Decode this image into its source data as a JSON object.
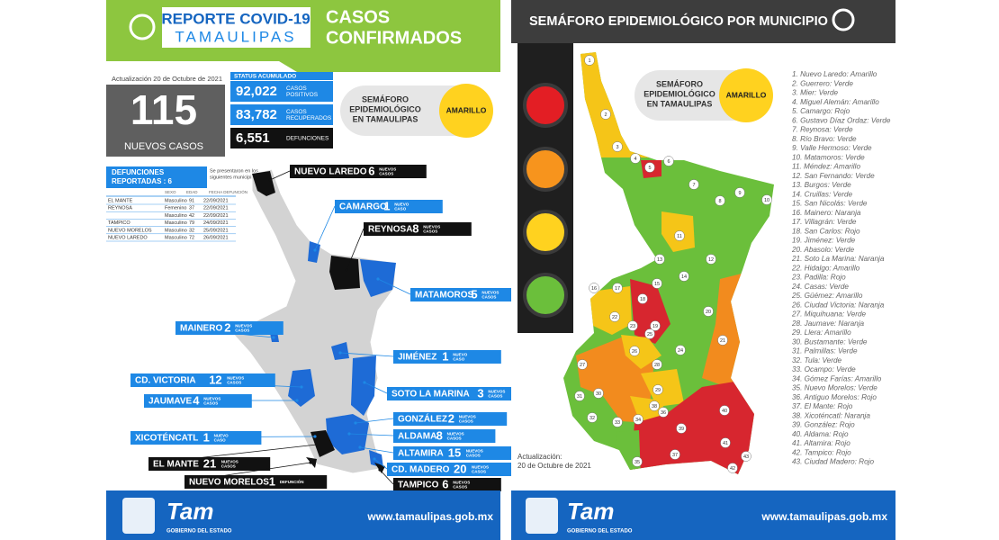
{
  "left": {
    "header": {
      "title": "REPORTE COVID-19",
      "subtitle": "TAMAULIPAS",
      "heading_lines": [
        "CASOS",
        "CONFIRMADOS"
      ]
    },
    "update": "Actualización 20 de Octubre de 2021",
    "new_cases": {
      "value": "115",
      "label": "NUEVOS CASOS"
    },
    "status": {
      "title": "STATUS ACUMULADO",
      "items": [
        {
          "value": "92,022",
          "label_lines": [
            "CASOS",
            "POSITIVOS"
          ]
        },
        {
          "value": "83,782",
          "label_lines": [
            "CASOS",
            "RECUPERADOS"
          ]
        },
        {
          "value": "6,551",
          "label_lines": [
            "DEFUNCIONES"
          ]
        }
      ]
    },
    "semaforo": {
      "lines": [
        "SEMÁFORO",
        "EPIDEMIOLÓGICO",
        "EN TAMAULIPAS"
      ],
      "level": "AMARILLO"
    },
    "deaths": {
      "title_lines": [
        "DEFUNCIONES",
        "REPORTADAS : 6"
      ],
      "note_lines": [
        "Se presentaron en los",
        "siguientes municipios:"
      ],
      "headers": [
        "SEXO",
        "EDAD",
        "FECHA DEFUNCIÓN"
      ],
      "rows": [
        {
          "municipio": "EL MANTE",
          "sexo": "Masculino",
          "edad": "91",
          "fecha": "22/09/2021"
        },
        {
          "municipio": "REYNOSA",
          "sexo": "Femenino",
          "edad": "37",
          "fecha": "22/09/2021"
        },
        {
          "sexo": "Masculino",
          "edad": "42",
          "fecha": "22/09/2021"
        },
        {
          "municipio": "TAMPICO",
          "sexo": "Masculino",
          "edad": "79",
          "fecha": "24/09/2021"
        },
        {
          "municipio": "NUEVO MORELOS",
          "sexo": "Masculino",
          "edad": "32",
          "fecha": "25/09/2021"
        },
        {
          "municipio": "NUEVO LAREDO",
          "sexo": "Masculino",
          "edad": "72",
          "fecha": "26/09/2021"
        }
      ]
    },
    "callouts": [
      {
        "name": "NUEVO LAREDO",
        "count": "6",
        "unit_lines": [
          "NUEVOS",
          "CASOS"
        ],
        "style": "black"
      },
      {
        "name": "CAMARGO",
        "count": "1",
        "unit_lines": [
          "NUEVO",
          "CASO"
        ],
        "style": "blue"
      },
      {
        "name": "REYNOSA",
        "count": "8",
        "unit_lines": [
          "NUEVOS",
          "CASOS"
        ],
        "style": "black"
      },
      {
        "name": "MATAMOROS",
        "count": "5",
        "unit_lines": [
          "NUEVOS",
          "CASOS"
        ],
        "style": "blue"
      },
      {
        "name": "MAINERO",
        "count": "2",
        "unit_lines": [
          "NUEVOS",
          "CASOS"
        ],
        "style": "blue"
      },
      {
        "name": "JIMÉNEZ",
        "count": "1",
        "unit_lines": [
          "NUEVO",
          "CASO"
        ],
        "style": "blue"
      },
      {
        "name": "CD. VICTORIA",
        "count": "12",
        "unit_lines": [
          "NUEVOS",
          "CASOS"
        ],
        "style": "blue"
      },
      {
        "name": "SOTO LA MARINA",
        "count": "3",
        "unit_lines": [
          "NUEVOS",
          "CASOS"
        ],
        "style": "blue"
      },
      {
        "name": "JAUMAVE",
        "count": "4",
        "unit_lines": [
          "NUEVOS",
          "CASOS"
        ],
        "style": "blue"
      },
      {
        "name": "GONZÁLEZ",
        "count": "2",
        "unit_lines": [
          "NUEVOS",
          "CASOS"
        ],
        "style": "blue"
      },
      {
        "name": "ALDAMA",
        "count": "8",
        "unit_lines": [
          "NUEVOS",
          "CASOS"
        ],
        "style": "blue"
      },
      {
        "name": "XICOTÉNCATL",
        "count": "1",
        "unit_lines": [
          "NUEVO",
          "CASO"
        ],
        "style": "blue"
      },
      {
        "name": "ALTAMIRA",
        "count": "15",
        "unit_lines": [
          "NUEVOS",
          "CASOS"
        ],
        "style": "blue"
      },
      {
        "name": "EL MANTE",
        "count": "21",
        "unit_lines": [
          "NUEVOS",
          "CASOS"
        ],
        "style": "black"
      },
      {
        "name": "CD. MADERO",
        "count": "20",
        "unit_lines": [
          "NUEVOS",
          "CASOS"
        ],
        "style": "blue"
      },
      {
        "name": "NUEVO MORELOS",
        "count": "1",
        "unit_lines": [
          "DEFUNCIÓN"
        ],
        "style": "black"
      },
      {
        "name": "TAMPICO",
        "count": "6",
        "unit_lines": [
          "NUEVOS",
          "CASOS"
        ],
        "style": "black"
      }
    ],
    "footer": {
      "logo": "Tam",
      "government": "GOBIERNO DEL ESTADO",
      "url": "www.tamaulipas.gob.mx"
    }
  },
  "right": {
    "title": "SEMÁFORO EPIDEMIOLÓGICO POR MUNICIPIO",
    "semaforo": {
      "lines": [
        "SEMÁFORO",
        "EPIDEMIOLÓGICO",
        "EN TAMAULIPAS"
      ],
      "level": "AMARILLO"
    },
    "update_lines": [
      "Actualización:",
      "20 de Octubre de 2021"
    ],
    "map_numbers": [
      "1",
      "2",
      "3",
      "4",
      "5",
      "6",
      "7",
      "8",
      "9",
      "10",
      "11",
      "12",
      "13",
      "14",
      "15",
      "16",
      "17",
      "18",
      "19",
      "20",
      "21",
      "22",
      "23",
      "24",
      "25",
      "26",
      "27",
      "28",
      "29",
      "30",
      "31",
      "32",
      "33",
      "34",
      "35",
      "36",
      "37",
      "38",
      "39",
      "40",
      "41",
      "42",
      "43"
    ],
    "municipios": [
      "1. Nuevo Laredo: Amarillo",
      "2. Guerrero: Verde",
      "3. Mier: Verde",
      "4. Miguel Alemán: Amarillo",
      "5. Camargo: Rojo",
      "6. Gustavo Díaz Ordaz: Verde",
      "7. Reynosa: Verde",
      "8. Río Bravo: Verde",
      "9. Valle Hermoso: Verde",
      "10. Matamoros: Verde",
      "11. Méndez: Amarillo",
      "12. San Fernando: Verde",
      "13. Burgos: Verde",
      "14. Cruillas: Verde",
      "15. San Nicolás: Verde",
      "16. Mainero: Naranja",
      "17. Villagrán: Verde",
      "18. San Carlos: Rojo",
      "19. Jiménez: Verde",
      "20. Abasolo: Verde",
      "21. Soto La Marina: Naranja",
      "22. Hidalgo: Amarillo",
      "23. Padilla: Rojo",
      "24. Casas: Verde",
      "25. Güémez: Amarillo",
      "26. Ciudad Victoria: Naranja",
      "27. Miquihuana: Verde",
      "28. Jaumave: Naranja",
      "29. Llera: Amarillo",
      "30. Bustamante: Verde",
      "31. Palmillas: Verde",
      "32. Tula: Verde",
      "33. Ocampo: Verde",
      "34. Gómez Farías: Amarillo",
      "35. Nuevo Morelos: Verde",
      "36. Antiguo Morelos: Rojo",
      "37. El Mante: Rojo",
      "38. Xicoténcatl: Naranja",
      "39. González: Rojo",
      "40. Aldama: Rojo",
      "41. Altamira: Rojo",
      "42. Tampico: Rojo",
      "43. Ciudad Madero: Rojo"
    ],
    "footer": {
      "logo": "Tam",
      "government": "GOBIERNO DEL ESTADO",
      "url": "www.tamaulipas.gob.mx"
    }
  }
}
